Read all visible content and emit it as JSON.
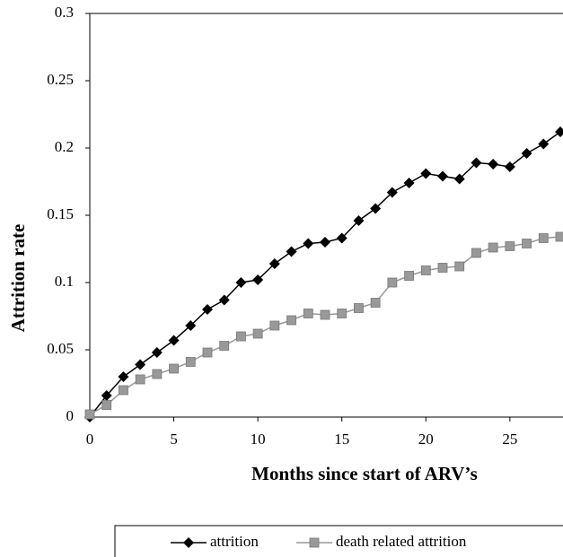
{
  "chart_data": {
    "type": "line",
    "x_label": "Months since start of ARV’s",
    "y_label": "Attrition rate",
    "x": [
      0,
      1,
      2,
      3,
      4,
      5,
      6,
      7,
      8,
      9,
      10,
      11,
      12,
      13,
      14,
      15,
      16,
      17,
      18,
      19,
      20,
      21,
      22,
      23,
      24,
      25,
      26,
      27,
      28
    ],
    "series": [
      {
        "name": "attrition",
        "color": "#000000",
        "marker": "diamond",
        "values": [
          0,
          0.016,
          0.03,
          0.039,
          0.048,
          0.057,
          0.068,
          0.08,
          0.087,
          0.1,
          0.102,
          0.114,
          0.123,
          0.129,
          0.13,
          0.133,
          0.146,
          0.155,
          0.167,
          0.174,
          0.181,
          0.179,
          0.177,
          0.189,
          0.188,
          0.186,
          0.196,
          0.203,
          0.212
        ]
      },
      {
        "name": "death related attrition",
        "color": "#999999",
        "marker": "square",
        "values": [
          0.002,
          0.009,
          0.02,
          0.028,
          0.032,
          0.036,
          0.041,
          0.048,
          0.053,
          0.06,
          0.062,
          0.068,
          0.072,
          0.077,
          0.076,
          0.077,
          0.081,
          0.085,
          0.1,
          0.105,
          0.109,
          0.111,
          0.112,
          0.122,
          0.126,
          0.127,
          0.129,
          0.133,
          0.134
        ]
      }
    ],
    "xlim": [
      0,
      28
    ],
    "xticks": [
      0,
      5,
      10,
      15,
      20,
      25
    ],
    "ylim": [
      0,
      0.3
    ],
    "yticks": [
      0,
      0.05,
      0.1,
      0.15,
      0.2,
      0.25,
      0.3
    ],
    "legend": "bottom"
  }
}
